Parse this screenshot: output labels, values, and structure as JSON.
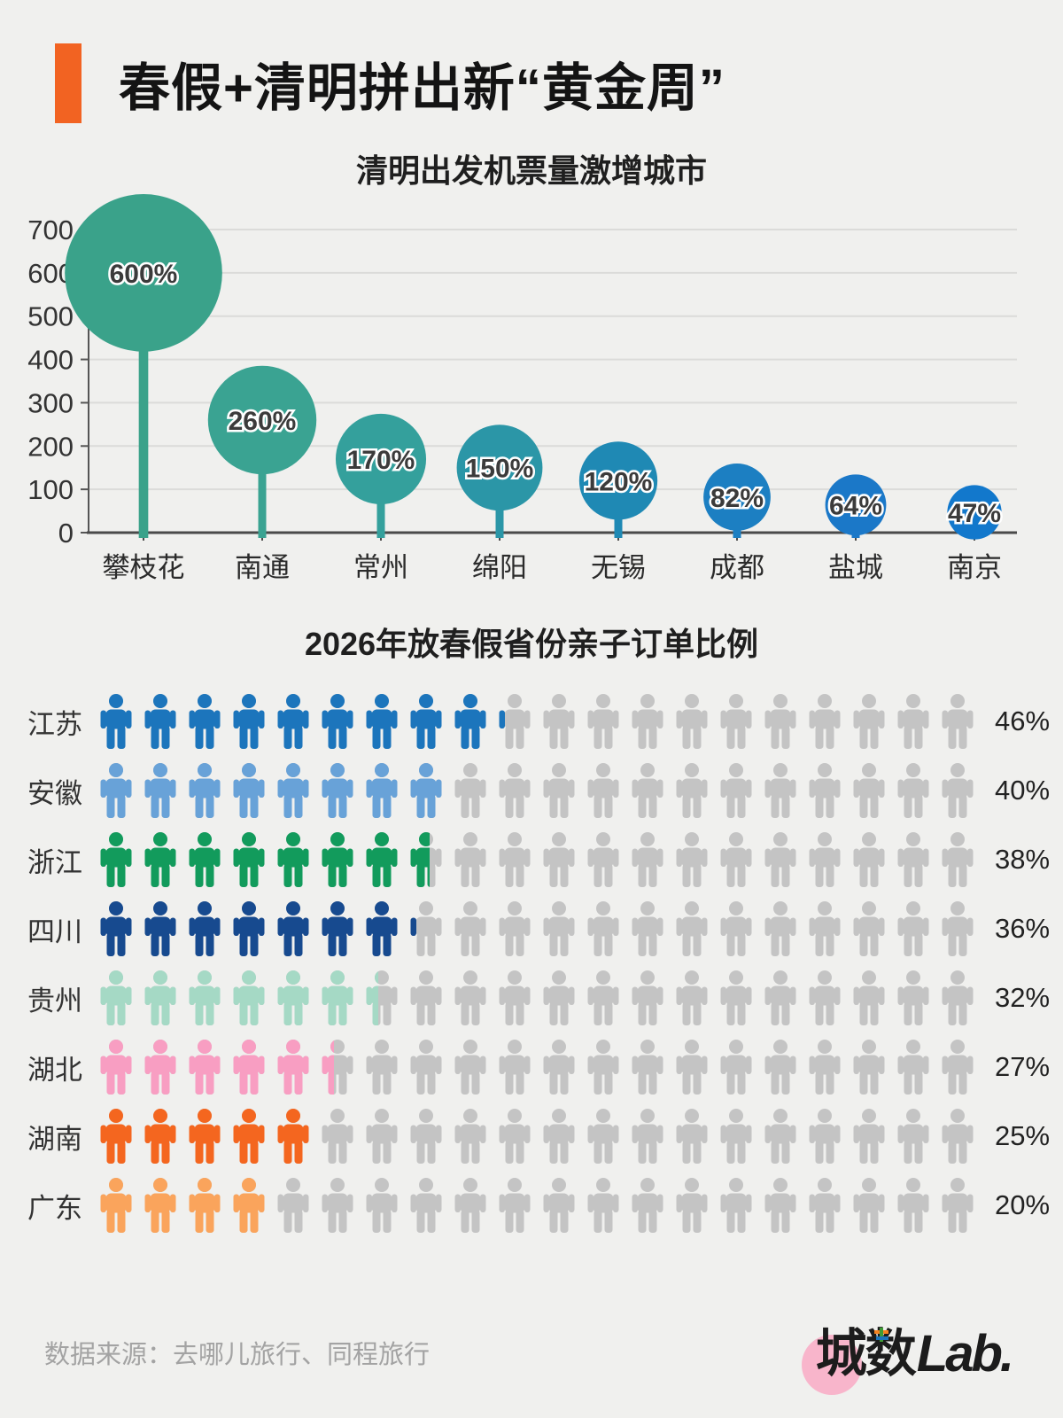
{
  "page": {
    "title": "春假+清明拼出新“黄金周”",
    "title_bar_color": "#f26322",
    "background": "#f0f0ee"
  },
  "chart_data": [
    {
      "type": "bar",
      "subtype": "lollipop-bubble",
      "title": "清明出发机票量激增城市",
      "categories": [
        "攀枝花",
        "南通",
        "常州",
        "绵阳",
        "无锡",
        "成都",
        "盐城",
        "南京"
      ],
      "values": [
        600,
        260,
        170,
        150,
        120,
        82,
        64,
        47
      ],
      "labels": [
        "600%",
        "260%",
        "170%",
        "150%",
        "120%",
        "82%",
        "64%",
        "47%"
      ],
      "colors": [
        "#3aa28a",
        "#3aa392",
        "#34a09c",
        "#2b96a7",
        "#1f89b4",
        "#1c7fc2",
        "#1b78c8",
        "#1278cc"
      ],
      "ylim": [
        0,
        700
      ],
      "yticks": [
        0,
        100,
        200,
        300,
        400,
        500,
        600,
        700
      ],
      "grid": true,
      "axis_color": "#4a4a4a",
      "grid_color": "#dbdbd9"
    },
    {
      "type": "pictogram",
      "title": "2026年放春假省份亲子订单比例",
      "icons_per_row": 20,
      "empty_color": "#c4c4c4",
      "rows": [
        {
          "label": "江苏",
          "value": 46,
          "display": "46%",
          "color": "#1c75bc"
        },
        {
          "label": "安徽",
          "value": 40,
          "display": "40%",
          "color": "#68a2d8"
        },
        {
          "label": "浙江",
          "value": 38,
          "display": "38%",
          "color": "#129b5c"
        },
        {
          "label": "四川",
          "value": 36,
          "display": "36%",
          "color": "#174a8f"
        },
        {
          "label": "贵州",
          "value": 32,
          "display": "32%",
          "color": "#a5d9c5"
        },
        {
          "label": "湖北",
          "value": 27,
          "display": "27%",
          "color": "#f89ec2"
        },
        {
          "label": "湖南",
          "value": 25,
          "display": "25%",
          "color": "#f4661f"
        },
        {
          "label": "广东",
          "value": 20,
          "display": "20%",
          "color": "#faa45c"
        }
      ]
    }
  ],
  "footer": {
    "source": "数据来源：去哪儿旅行、同程旅行",
    "logo": {
      "text_cn": "城数",
      "text_en": "Lab.",
      "circle_color": "#f8b5cb",
      "accent_orange": "#f58220",
      "accent_green": "#3f9c35",
      "accent_blue": "#1b75bc"
    }
  }
}
